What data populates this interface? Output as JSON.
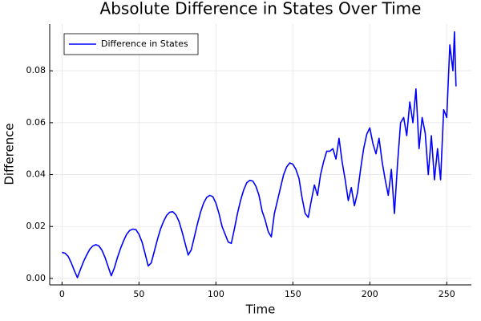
{
  "chart_data": {
    "type": "line",
    "title": "Absolute Difference in States Over Time",
    "x_label": "Time",
    "y_label": "Difference",
    "x": [
      0,
      2,
      4,
      6,
      8,
      10,
      12,
      14,
      16,
      18,
      20,
      22,
      24,
      26,
      28,
      30,
      32,
      34,
      36,
      38,
      40,
      42,
      44,
      46,
      48,
      50,
      52,
      54,
      56,
      58,
      60,
      62,
      64,
      66,
      68,
      70,
      72,
      74,
      76,
      78,
      80,
      82,
      84,
      86,
      88,
      90,
      92,
      94,
      96,
      98,
      100,
      102,
      104,
      106,
      108,
      110,
      112,
      114,
      116,
      118,
      120,
      122,
      124,
      126,
      128,
      130,
      132,
      134,
      136,
      138,
      140,
      142,
      144,
      146,
      148,
      150,
      152,
      154,
      156,
      158,
      160,
      162,
      164,
      166,
      168,
      170,
      172,
      174,
      176,
      178,
      180,
      182,
      184,
      186,
      188,
      190,
      192,
      194,
      196,
      198,
      200,
      202,
      204,
      206,
      208,
      210,
      212,
      214,
      216,
      218,
      220,
      222,
      224,
      226,
      228,
      230,
      232,
      234,
      236,
      238,
      240,
      242,
      244,
      246,
      248,
      250,
      252,
      254,
      255,
      256
    ],
    "series": [
      {
        "name": "Difference in States",
        "color": "#0000ff",
        "values": [
          0.01,
          0.0097,
          0.0085,
          0.006,
          0.003,
          0.0003,
          0.0035,
          0.0065,
          0.009,
          0.0112,
          0.0125,
          0.013,
          0.0125,
          0.0108,
          0.008,
          0.0045,
          0.001,
          0.004,
          0.008,
          0.0115,
          0.0145,
          0.017,
          0.0185,
          0.019,
          0.0188,
          0.017,
          0.014,
          0.0095,
          0.0048,
          0.006,
          0.0105,
          0.015,
          0.019,
          0.022,
          0.0243,
          0.0255,
          0.0257,
          0.0245,
          0.022,
          0.018,
          0.0135,
          0.009,
          0.011,
          0.016,
          0.021,
          0.0255,
          0.029,
          0.0312,
          0.032,
          0.0315,
          0.029,
          0.025,
          0.02,
          0.017,
          0.014,
          0.0135,
          0.019,
          0.025,
          0.03,
          0.034,
          0.0368,
          0.0378,
          0.0375,
          0.0355,
          0.032,
          0.026,
          0.0225,
          0.018,
          0.016,
          0.025,
          0.03,
          0.035,
          0.04,
          0.043,
          0.0445,
          0.044,
          0.042,
          0.0385,
          0.031,
          0.025,
          0.0235,
          0.03,
          0.036,
          0.032,
          0.04,
          0.045,
          0.049,
          0.049,
          0.05,
          0.046,
          0.054,
          0.045,
          0.038,
          0.03,
          0.035,
          0.028,
          0.033,
          0.042,
          0.05,
          0.0555,
          0.058,
          0.052,
          0.048,
          0.054,
          0.045,
          0.038,
          0.032,
          0.042,
          0.025,
          0.044,
          0.06,
          0.062,
          0.055,
          0.068,
          0.06,
          0.073,
          0.05,
          0.062,
          0.056,
          0.04,
          0.055,
          0.038,
          0.05,
          0.038,
          0.065,
          0.062,
          0.09,
          0.08,
          0.095,
          0.074
        ]
      }
    ],
    "xlim": [
      -8,
      266
    ],
    "ylim": [
      -0.0025,
      0.098
    ],
    "xticks": [
      0,
      50,
      100,
      150,
      200,
      250
    ],
    "yticks": [
      {
        "value": 0,
        "label": "0.00"
      },
      {
        "value": 0.02,
        "label": "0.02"
      },
      {
        "value": 0.04,
        "label": "0.04"
      },
      {
        "value": 0.06,
        "label": "0.06"
      },
      {
        "value": 0.08,
        "label": "0.08"
      }
    ],
    "grid": true,
    "legend": "top-left"
  }
}
